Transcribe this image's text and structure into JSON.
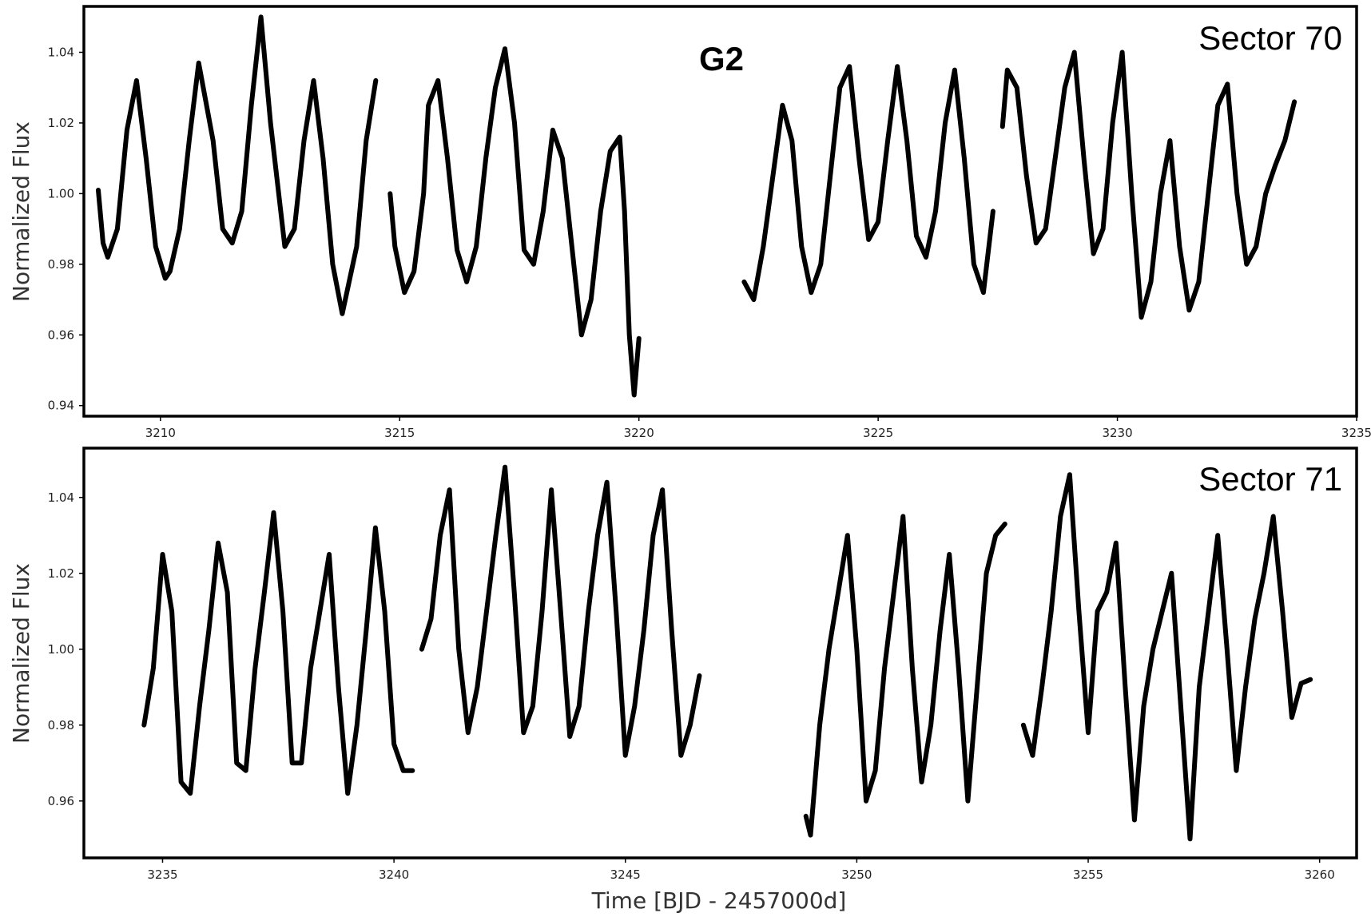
{
  "figure": {
    "object_label": "G2",
    "xlabel": "Time [BJD - 2457000d]"
  },
  "chart_data": [
    {
      "type": "line",
      "title": "Sector 70",
      "ylabel": "Normalized Flux",
      "xlim": [
        3208.4,
        3235.0
      ],
      "ylim": [
        0.937,
        1.053
      ],
      "xticks": [
        3210,
        3215,
        3220,
        3225,
        3230,
        3235
      ],
      "yticks": [
        0.94,
        0.96,
        0.98,
        1.0,
        1.02,
        1.04
      ],
      "xtick_labels": [
        "3210",
        "3215",
        "3220",
        "3225",
        "3230",
        "3235"
      ],
      "ytick_labels": [
        "0.94",
        "0.96",
        "0.98",
        "1.00",
        "1.02",
        "1.04"
      ],
      "series": [
        {
          "x": [
            3208.7,
            3208.8,
            3208.9,
            3209.1,
            3209.3,
            3209.5,
            3209.7,
            3209.9,
            3210.1,
            3210.2,
            3210.4,
            3210.6,
            3210.8,
            3211.1,
            3211.3,
            3211.5,
            3211.7,
            3211.9,
            3212.1,
            3212.3,
            3212.6,
            3212.8,
            3213.0,
            3213.2,
            3213.4,
            3213.6,
            3213.8,
            3214.1,
            3214.3,
            3214.5
          ],
          "y": [
            1.001,
            0.986,
            0.982,
            0.99,
            1.018,
            1.032,
            1.01,
            0.985,
            0.976,
            0.978,
            0.99,
            1.015,
            1.037,
            1.015,
            0.99,
            0.986,
            0.995,
            1.025,
            1.05,
            1.02,
            0.985,
            0.99,
            1.015,
            1.032,
            1.01,
            0.98,
            0.966,
            0.985,
            1.015,
            1.032
          ]
        },
        {
          "x": [
            3214.8,
            3214.9,
            3215.1,
            3215.3,
            3215.5,
            3215.6,
            3215.8,
            3216.0,
            3216.2,
            3216.4,
            3216.6,
            3216.8,
            3217.0,
            3217.2,
            3217.4,
            3217.6,
            3217.8,
            3218.0,
            3218.2,
            3218.4,
            3218.6,
            3218.8,
            3219.0,
            3219.2,
            3219.4,
            3219.6,
            3219.7,
            3219.8,
            3219.9,
            3220.0
          ],
          "y": [
            1.0,
            0.985,
            0.972,
            0.978,
            1.0,
            1.025,
            1.032,
            1.01,
            0.984,
            0.975,
            0.985,
            1.01,
            1.03,
            1.041,
            1.02,
            0.984,
            0.98,
            0.995,
            1.018,
            1.01,
            0.985,
            0.96,
            0.97,
            0.995,
            1.012,
            1.016,
            0.995,
            0.96,
            0.943,
            0.959
          ]
        },
        {
          "x": [
            3222.2,
            3222.4,
            3222.6,
            3222.8,
            3223.0,
            3223.2,
            3223.4,
            3223.6,
            3223.8,
            3224.0,
            3224.2,
            3224.4,
            3224.6,
            3224.8,
            3225.0,
            3225.2,
            3225.4,
            3225.6,
            3225.8,
            3226.0,
            3226.2,
            3226.4,
            3226.6,
            3226.8,
            3227.0,
            3227.2,
            3227.4
          ],
          "y": [
            0.975,
            0.97,
            0.985,
            1.005,
            1.025,
            1.015,
            0.985,
            0.972,
            0.98,
            1.005,
            1.03,
            1.036,
            1.01,
            0.987,
            0.992,
            1.015,
            1.036,
            1.015,
            0.988,
            0.982,
            0.995,
            1.02,
            1.035,
            1.01,
            0.98,
            0.972,
            0.995
          ]
        },
        {
          "x": [
            3227.6,
            3227.7,
            3227.9,
            3228.1,
            3228.3,
            3228.5,
            3228.7,
            3228.9,
            3229.1,
            3229.3,
            3229.5,
            3229.7,
            3229.9,
            3230.1,
            3230.3,
            3230.5,
            3230.7,
            3230.9,
            3231.1,
            3231.3,
            3231.5,
            3231.7,
            3231.9,
            3232.1,
            3232.3,
            3232.5,
            3232.7,
            3232.9,
            3233.1,
            3233.3,
            3233.5,
            3233.7
          ],
          "y": [
            1.019,
            1.035,
            1.03,
            1.005,
            0.986,
            0.99,
            1.01,
            1.03,
            1.04,
            1.01,
            0.983,
            0.99,
            1.02,
            1.04,
            1.0,
            0.965,
            0.975,
            1.0,
            1.015,
            0.985,
            0.967,
            0.975,
            1.0,
            1.025,
            1.031,
            1.0,
            0.98,
            0.985,
            1.0,
            1.008,
            1.015,
            1.026
          ]
        }
      ]
    },
    {
      "type": "line",
      "title": "Sector 71",
      "ylabel": "Normalized Flux",
      "xlim": [
        3233.3,
        3260.8
      ],
      "ylim": [
        0.945,
        1.053
      ],
      "xticks": [
        3235,
        3240,
        3245,
        3250,
        3255,
        3260
      ],
      "yticks": [
        0.96,
        0.98,
        1.0,
        1.02,
        1.04
      ],
      "xtick_labels": [
        "3235",
        "3240",
        "3245",
        "3250",
        "3255",
        "3260"
      ],
      "ytick_labels": [
        "0.96",
        "0.98",
        "1.00",
        "1.02",
        "1.04"
      ],
      "series": [
        {
          "x": [
            3234.6,
            3234.8,
            3235.0,
            3235.2,
            3235.4,
            3235.6,
            3235.8,
            3236.0,
            3236.2,
            3236.4,
            3236.6,
            3236.8,
            3237.0,
            3237.2,
            3237.4,
            3237.6,
            3237.8,
            3238.0,
            3238.2,
            3238.4,
            3238.6,
            3238.8,
            3239.0,
            3239.2,
            3239.4,
            3239.6,
            3239.8,
            3240.0,
            3240.2,
            3240.4
          ],
          "y": [
            0.98,
            0.995,
            1.025,
            1.01,
            0.965,
            0.962,
            0.985,
            1.005,
            1.028,
            1.015,
            0.97,
            0.968,
            0.995,
            1.015,
            1.036,
            1.01,
            0.97,
            0.97,
            0.995,
            1.01,
            1.025,
            0.99,
            0.962,
            0.98,
            1.005,
            1.032,
            1.01,
            0.975,
            0.968,
            0.968
          ]
        },
        {
          "x": [
            3240.6,
            3240.8,
            3241.0,
            3241.2,
            3241.4,
            3241.6,
            3241.8,
            3242.0,
            3242.2,
            3242.4,
            3242.6,
            3242.8,
            3243.0,
            3243.2,
            3243.4,
            3243.6,
            3243.8,
            3244.0,
            3244.2,
            3244.4,
            3244.6,
            3244.8,
            3245.0,
            3245.2,
            3245.4,
            3245.6,
            3245.8,
            3246.0,
            3246.2,
            3246.4,
            3246.6
          ],
          "y": [
            1.0,
            1.008,
            1.03,
            1.042,
            1.0,
            0.978,
            0.99,
            1.01,
            1.03,
            1.048,
            1.015,
            0.978,
            0.985,
            1.01,
            1.042,
            1.01,
            0.977,
            0.985,
            1.01,
            1.03,
            1.044,
            1.01,
            0.972,
            0.985,
            1.005,
            1.03,
            1.042,
            1.005,
            0.972,
            0.98,
            0.993
          ]
        },
        {
          "x": [
            3248.9,
            3249.0,
            3249.2,
            3249.4,
            3249.6,
            3249.8,
            3250.0,
            3250.2,
            3250.4,
            3250.6,
            3250.8,
            3251.0,
            3251.2,
            3251.4,
            3251.6,
            3251.8,
            3252.0,
            3252.2,
            3252.4,
            3252.6,
            3252.8,
            3253.0,
            3253.2
          ],
          "y": [
            0.956,
            0.951,
            0.98,
            1.0,
            1.015,
            1.03,
            1.0,
            0.96,
            0.968,
            0.995,
            1.015,
            1.035,
            0.995,
            0.965,
            0.98,
            1.005,
            1.025,
            0.995,
            0.96,
            0.99,
            1.02,
            1.03,
            1.033
          ]
        },
        {
          "x": [
            3253.6,
            3253.8,
            3254.0,
            3254.2,
            3254.4,
            3254.6,
            3254.8,
            3255.0,
            3255.2,
            3255.4,
            3255.6,
            3255.8,
            3256.0,
            3256.2,
            3256.4,
            3256.6,
            3256.8,
            3257.0,
            3257.2,
            3257.4,
            3257.6,
            3257.8,
            3258.0,
            3258.2,
            3258.4,
            3258.6,
            3258.8,
            3259.0,
            3259.2,
            3259.4,
            3259.6,
            3259.8
          ],
          "y": [
            0.98,
            0.972,
            0.99,
            1.01,
            1.035,
            1.046,
            1.01,
            0.978,
            1.01,
            1.015,
            1.028,
            0.99,
            0.955,
            0.985,
            1.0,
            1.01,
            1.02,
            0.985,
            0.95,
            0.99,
            1.01,
            1.03,
            1.0,
            0.968,
            0.99,
            1.008,
            1.02,
            1.035,
            1.01,
            0.982,
            0.991,
            0.992
          ]
        }
      ]
    }
  ]
}
